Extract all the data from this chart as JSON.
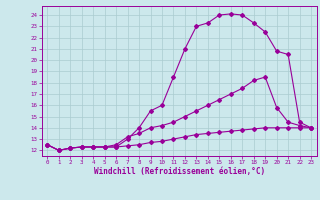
{
  "xlabel": "Windchill (Refroidissement éolien,°C)",
  "bg_color": "#cce8ec",
  "line_color": "#990099",
  "grid_color": "#aaccd0",
  "xlim": [
    -0.5,
    23.5
  ],
  "ylim": [
    11.5,
    24.8
  ],
  "xticks": [
    0,
    1,
    2,
    3,
    4,
    5,
    6,
    7,
    8,
    9,
    10,
    11,
    12,
    13,
    14,
    15,
    16,
    17,
    18,
    19,
    20,
    21,
    22,
    23
  ],
  "yticks": [
    12,
    13,
    14,
    15,
    16,
    17,
    18,
    19,
    20,
    21,
    22,
    23,
    24
  ],
  "line1_x": [
    0,
    1,
    2,
    3,
    4,
    5,
    6,
    7,
    8,
    9,
    10,
    11,
    12,
    13,
    14,
    15,
    16,
    17,
    18,
    19,
    20,
    21,
    22,
    23
  ],
  "line1_y": [
    12.5,
    12.0,
    12.2,
    12.3,
    12.3,
    12.3,
    12.3,
    13.0,
    14.0,
    15.5,
    16.0,
    18.5,
    21.0,
    23.0,
    23.3,
    24.0,
    24.1,
    24.0,
    23.3,
    22.5,
    20.8,
    20.5,
    14.5,
    14.0
  ],
  "line2_x": [
    0,
    1,
    2,
    3,
    4,
    5,
    6,
    7,
    8,
    9,
    10,
    11,
    12,
    13,
    14,
    15,
    16,
    17,
    18,
    19,
    20,
    21,
    22,
    23
  ],
  "line2_y": [
    12.5,
    12.0,
    12.2,
    12.3,
    12.3,
    12.3,
    12.5,
    13.2,
    13.5,
    14.0,
    14.2,
    14.5,
    15.0,
    15.5,
    16.0,
    16.5,
    17.0,
    17.5,
    18.2,
    18.5,
    15.8,
    14.5,
    14.2,
    14.0
  ],
  "line3_x": [
    0,
    1,
    2,
    3,
    4,
    5,
    6,
    7,
    8,
    9,
    10,
    11,
    12,
    13,
    14,
    15,
    16,
    17,
    18,
    19,
    20,
    21,
    22,
    23
  ],
  "line3_y": [
    12.5,
    12.0,
    12.2,
    12.3,
    12.3,
    12.3,
    12.3,
    12.4,
    12.5,
    12.7,
    12.8,
    13.0,
    13.2,
    13.4,
    13.5,
    13.6,
    13.7,
    13.8,
    13.9,
    14.0,
    14.0,
    14.0,
    14.0,
    14.0
  ],
  "xlabel_fontsize": 5.5,
  "tick_fontsize": 4.2,
  "marker_size": 2.0,
  "line_width": 0.8
}
